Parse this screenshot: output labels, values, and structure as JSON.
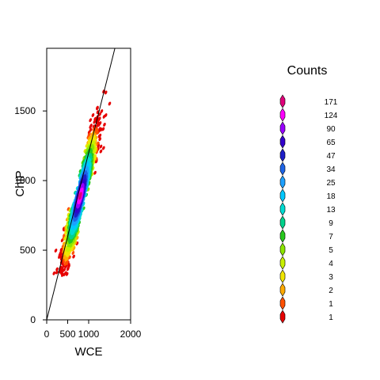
{
  "chart_data": {
    "type": "scatter",
    "subtype": "hexbin",
    "title": "",
    "xlabel": "WCE",
    "ylabel": "ChIP",
    "xlim": [
      0,
      2000
    ],
    "ylim": [
      0,
      1950
    ],
    "x_ticks": [
      0,
      500,
      1000,
      2000
    ],
    "y_ticks": [
      0,
      500,
      1000,
      1500
    ],
    "x_tick_labels": [
      "0",
      "500",
      "1000",
      "2000"
    ],
    "y_tick_labels": [
      "0",
      "500",
      "1000",
      "1500"
    ],
    "grid": false,
    "reference_line": {
      "slope": 1.2,
      "intercept": 0,
      "color": "#000000"
    },
    "density_center": [
      800,
      890
    ],
    "density_axis": {
      "major_spread": 260,
      "minor_spread": 35,
      "extent_low": 320,
      "extent_high": 1960
    },
    "legend": {
      "title": "Counts",
      "placement": "right",
      "labels": [
        "171",
        "124",
        "90",
        "65",
        "47",
        "34",
        "25",
        "18",
        "13",
        "9",
        "7",
        "5",
        "4",
        "3",
        "2",
        "1",
        "1"
      ],
      "colors": [
        "#e0007a",
        "#ff00ff",
        "#9900ff",
        "#3300cc",
        "#1e1ec8",
        "#1e64e6",
        "#1ea0ff",
        "#00c8ff",
        "#00dcd2",
        "#00d28c",
        "#28c81e",
        "#8ce600",
        "#c8f000",
        "#f0e600",
        "#ffaa00",
        "#ff5000",
        "#e60000"
      ]
    }
  }
}
